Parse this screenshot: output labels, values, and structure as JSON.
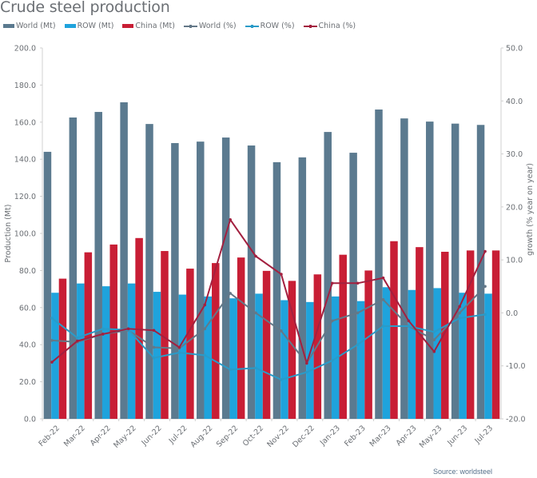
{
  "chart_data": {
    "type": "bar",
    "title": "Crude steel production",
    "categories": [
      "Feb-22",
      "Mar-22",
      "Apr-22",
      "May-22",
      "Jun-22",
      "Jul-22",
      "Aug-22",
      "Sep-22",
      "Oct-22",
      "Nov-22",
      "Dec-22",
      "Jan-23",
      "Feb-23",
      "Mar-23",
      "Apr-23",
      "May-23",
      "Jun-23",
      "Jul-23"
    ],
    "ylabel": "Production (Mt)",
    "y2label": "growth (% year on year)",
    "ylim": [
      0,
      200
    ],
    "y2lim": [
      -20,
      50
    ],
    "yticks": [
      "0.0",
      "20.0",
      "40.0",
      "60.0",
      "80.0",
      "100.0",
      "120.0",
      "140.0",
      "160.0",
      "180.0",
      "200.0"
    ],
    "y2ticks": [
      "-20.0",
      "-10.0",
      "0.0",
      "10.0",
      "20.0",
      "30.0",
      "40.0",
      "50.0"
    ],
    "legend_position": "top-left",
    "grid": false,
    "series": [
      {
        "name": "World (Mt)",
        "kind": "bar",
        "axis": "left",
        "color": "#5b7a8f",
        "values": [
          144.0,
          162.5,
          165.5,
          170.7,
          159.0,
          148.7,
          149.5,
          151.7,
          147.4,
          138.4,
          141.0,
          154.7,
          143.5,
          166.8,
          162.0,
          160.3,
          159.2,
          158.5
        ]
      },
      {
        "name": "ROW (Mt)",
        "kind": "bar",
        "axis": "left",
        "color": "#1fa3dc",
        "values": [
          68.0,
          73.0,
          71.5,
          73.0,
          68.5,
          67.0,
          66.0,
          65.0,
          67.5,
          64.0,
          63.0,
          66.0,
          63.5,
          71.0,
          69.5,
          70.5,
          68.0,
          67.5
        ]
      },
      {
        "name": "China (Mt)",
        "kind": "bar",
        "axis": "left",
        "color": "#c81e35",
        "values": [
          75.6,
          89.8,
          94.0,
          97.5,
          90.5,
          81.0,
          84.0,
          87.0,
          79.8,
          74.4,
          77.9,
          88.5,
          80.0,
          95.8,
          92.6,
          90.1,
          90.8,
          90.8
        ]
      },
      {
        "name": "World (%)",
        "kind": "line",
        "axis": "right",
        "color": "#647888",
        "values": [
          -5.2,
          -5.5,
          -4.0,
          -3.3,
          -6.5,
          -6.7,
          -3.0,
          3.7,
          0.0,
          -3.4,
          -9.5,
          -1.5,
          0.0,
          2.5,
          -2.5,
          -5.1,
          0.0,
          5.0
        ]
      },
      {
        "name": "ROW (%)",
        "kind": "line",
        "axis": "right",
        "color": "#2a9bc8",
        "values": [
          -1.0,
          -4.7,
          -3.0,
          -3.2,
          -8.5,
          -7.5,
          -8.0,
          -10.7,
          -10.4,
          -12.6,
          -11.2,
          -9.0,
          -6.0,
          -2.5,
          -2.5,
          -3.6,
          -1.0,
          -0.3
        ]
      },
      {
        "name": "China (%)",
        "kind": "line",
        "axis": "right",
        "color": "#a3203f",
        "values": [
          -9.3,
          -5.3,
          -4.0,
          -3.0,
          -3.3,
          -6.5,
          1.5,
          17.6,
          10.7,
          7.3,
          -9.5,
          5.6,
          5.6,
          6.6,
          -1.5,
          -7.3,
          1.2,
          11.6
        ]
      }
    ],
    "source": "Source: worldsteel"
  },
  "legend": [
    {
      "label": "World (Mt)",
      "kind": "bar",
      "color": "#5b7a8f"
    },
    {
      "label": "ROW (Mt)",
      "kind": "bar",
      "color": "#1fa3dc"
    },
    {
      "label": "China (Mt)",
      "kind": "bar",
      "color": "#c81e35"
    },
    {
      "label": "World (%)",
      "kind": "line",
      "color": "#647888"
    },
    {
      "label": "ROW (%)",
      "kind": "line",
      "color": "#2a9bc8"
    },
    {
      "label": "China (%)",
      "kind": "line",
      "color": "#a3203f"
    }
  ]
}
